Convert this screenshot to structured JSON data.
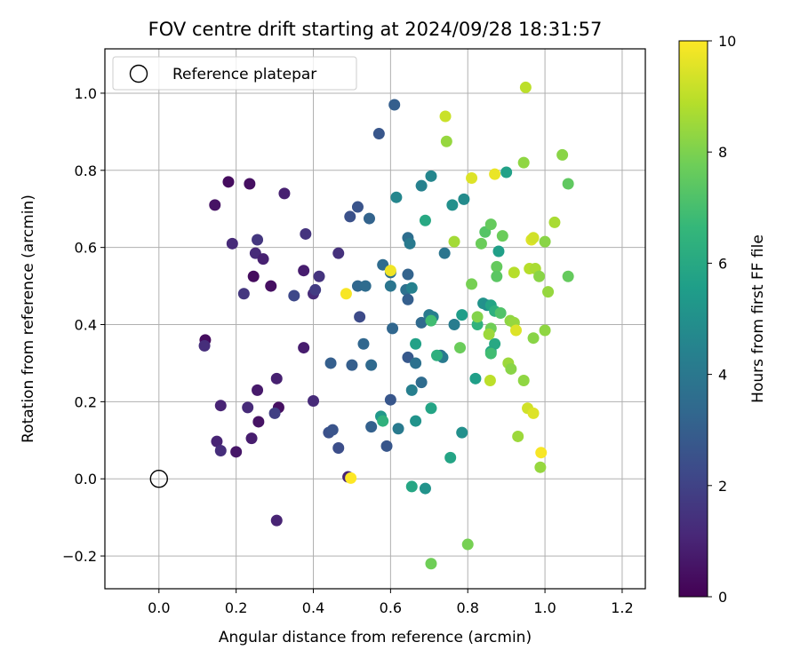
{
  "chart_data": {
    "type": "scatter",
    "title": "FOV centre drift starting at 2024/09/28 18:31:57",
    "xlabel": "Angular distance from reference (arcmin)",
    "ylabel": "Rotation from reference (arcmin)",
    "xlim": [
      -0.14,
      1.26
    ],
    "ylim": [
      -0.285,
      1.115
    ],
    "xticks": [
      0.0,
      0.2,
      0.4,
      0.6,
      0.8,
      1.0,
      1.2
    ],
    "xtick_labels": [
      "0.0",
      "0.2",
      "0.4",
      "0.6",
      "0.8",
      "1.0",
      "1.2"
    ],
    "yticks": [
      -0.2,
      0.0,
      0.2,
      0.4,
      0.6,
      0.8,
      1.0
    ],
    "ytick_labels": [
      "−0.2",
      "0.0",
      "0.2",
      "0.4",
      "0.6",
      "0.8",
      "1.0"
    ],
    "grid": true,
    "legend": {
      "position": "upper left",
      "entries": [
        "Reference platepar"
      ]
    },
    "reference_point": {
      "label": "Reference platepar",
      "x": 0.0,
      "y": 0.0
    },
    "colorbar": {
      "label": "Hours from first FF file",
      "range": [
        0,
        10
      ],
      "ticks": [
        0,
        2,
        4,
        6,
        8,
        10
      ],
      "tick_labels": [
        "0",
        "2",
        "4",
        "6",
        "8",
        "10"
      ],
      "colormap": "viridis",
      "colors": [
        "#440154",
        "#482878",
        "#3e4989",
        "#31688e",
        "#26828e",
        "#1f9e89",
        "#35b779",
        "#6ece58",
        "#b5de2b",
        "#fde725"
      ]
    },
    "series": [
      {
        "points": [
          [
            0.18,
            0.77,
            0.3
          ],
          [
            0.235,
            0.765,
            0.4
          ],
          [
            0.325,
            0.74,
            0.9
          ],
          [
            0.145,
            0.71,
            0.5
          ],
          [
            0.19,
            0.61,
            1.2
          ],
          [
            0.255,
            0.62,
            1.6
          ],
          [
            0.25,
            0.585,
            1.2
          ],
          [
            0.27,
            0.57,
            0.9
          ],
          [
            0.245,
            0.525,
            0.3
          ],
          [
            0.29,
            0.5,
            0.4
          ],
          [
            0.22,
            0.48,
            1.6
          ],
          [
            0.375,
            0.54,
            0.8
          ],
          [
            0.38,
            0.635,
            1.5
          ],
          [
            0.35,
            0.475,
            2.2
          ],
          [
            0.4,
            0.48,
            1.2
          ],
          [
            0.405,
            0.49,
            1.8
          ],
          [
            0.415,
            0.525,
            1.5
          ],
          [
            0.465,
            0.585,
            1.4
          ],
          [
            0.12,
            0.36,
            0.3
          ],
          [
            0.118,
            0.345,
            1.3
          ],
          [
            0.375,
            0.34,
            0.8
          ],
          [
            0.305,
            0.26,
            0.9
          ],
          [
            0.16,
            0.19,
            1.0
          ],
          [
            0.255,
            0.23,
            0.7
          ],
          [
            0.23,
            0.185,
            1.2
          ],
          [
            0.31,
            0.185,
            0.4
          ],
          [
            0.3,
            0.17,
            1.9
          ],
          [
            0.258,
            0.148,
            0.5
          ],
          [
            0.4,
            0.202,
            1.2
          ],
          [
            0.15,
            0.097,
            1.0
          ],
          [
            0.16,
            0.073,
            1.3
          ],
          [
            0.2,
            0.07,
            0.6
          ],
          [
            0.24,
            0.105,
            0.8
          ],
          [
            0.305,
            -0.108,
            1.0
          ],
          [
            0.44,
            0.12,
            2.5
          ],
          [
            0.45,
            0.127,
            2.6
          ],
          [
            0.465,
            0.08,
            2.4
          ],
          [
            0.49,
            0.005,
            1.0
          ],
          [
            0.495,
            0.68,
            2.5
          ],
          [
            0.515,
            0.705,
            2.6
          ],
          [
            0.545,
            0.675,
            3.2
          ],
          [
            0.57,
            0.895,
            2.7
          ],
          [
            0.61,
            0.97,
            3.0
          ],
          [
            0.515,
            0.5,
            3.3
          ],
          [
            0.535,
            0.5,
            3.5
          ],
          [
            0.52,
            0.42,
            2.3
          ],
          [
            0.53,
            0.35,
            3.3
          ],
          [
            0.445,
            0.3,
            3.0
          ],
          [
            0.5,
            0.295,
            3.0
          ],
          [
            0.55,
            0.295,
            3.4
          ],
          [
            0.58,
            0.555,
            3.5
          ],
          [
            0.6,
            0.535,
            3.5
          ],
          [
            0.6,
            0.5,
            3.9
          ],
          [
            0.605,
            0.39,
            3.3
          ],
          [
            0.6,
            0.205,
            2.7
          ],
          [
            0.55,
            0.135,
            3.1
          ],
          [
            0.59,
            0.085,
            2.7
          ],
          [
            0.62,
            0.13,
            4.1
          ],
          [
            0.645,
            0.625,
            3.6
          ],
          [
            0.65,
            0.61,
            4.1
          ],
          [
            0.645,
            0.53,
            3.2
          ],
          [
            0.64,
            0.49,
            3.7
          ],
          [
            0.645,
            0.465,
            3.0
          ],
          [
            0.655,
            0.495,
            4.4
          ],
          [
            0.645,
            0.315,
            2.8
          ],
          [
            0.68,
            0.405,
            3.4
          ],
          [
            0.665,
            0.3,
            3.7
          ],
          [
            0.68,
            0.25,
            3.5
          ],
          [
            0.655,
            0.23,
            4.3
          ],
          [
            0.615,
            0.73,
            4.6
          ],
          [
            0.68,
            0.76,
            4.4
          ],
          [
            0.705,
            0.785,
            4.6
          ],
          [
            0.74,
            0.585,
            3.9
          ],
          [
            0.7,
            0.425,
            4.1
          ],
          [
            0.71,
            0.42,
            4.3
          ],
          [
            0.73,
            0.32,
            3.7
          ],
          [
            0.735,
            0.315,
            4.1
          ],
          [
            0.76,
            0.71,
            5.0
          ],
          [
            0.79,
            0.725,
            4.8
          ],
          [
            0.765,
            0.4,
            4.2
          ],
          [
            0.785,
            0.425,
            5.5
          ],
          [
            0.785,
            0.12,
            5.0
          ],
          [
            0.755,
            0.055,
            5.8
          ],
          [
            0.665,
            0.35,
            5.7
          ],
          [
            0.665,
            0.15,
            5.1
          ],
          [
            0.655,
            -0.02,
            5.9
          ],
          [
            0.69,
            -0.025,
            5.1
          ],
          [
            0.575,
            0.162,
            5.3
          ],
          [
            0.58,
            0.15,
            6.4
          ],
          [
            0.69,
            0.67,
            6.0
          ],
          [
            0.705,
            0.41,
            6.9
          ],
          [
            0.72,
            0.32,
            6.3
          ],
          [
            0.705,
            0.183,
            5.8
          ],
          [
            0.82,
            0.26,
            5.6
          ],
          [
            0.84,
            0.455,
            5.1
          ],
          [
            0.85,
            0.45,
            5.0
          ],
          [
            0.86,
            0.45,
            5.8
          ],
          [
            0.87,
            0.435,
            6.3
          ],
          [
            0.88,
            0.59,
            5.6
          ],
          [
            0.9,
            0.795,
            5.7
          ],
          [
            0.825,
            0.4,
            6.4
          ],
          [
            0.87,
            0.35,
            6.0
          ],
          [
            0.86,
            0.33,
            5.9
          ],
          [
            0.86,
            0.325,
            6.9
          ],
          [
            0.78,
            0.34,
            7.7
          ],
          [
            0.845,
            0.64,
            7.3
          ],
          [
            0.86,
            0.66,
            7.6
          ],
          [
            0.835,
            0.61,
            7.7
          ],
          [
            0.875,
            0.55,
            7.6
          ],
          [
            0.875,
            0.525,
            7.4
          ],
          [
            0.81,
            0.505,
            7.9
          ],
          [
            0.825,
            0.42,
            8.1
          ],
          [
            0.86,
            0.39,
            7.8
          ],
          [
            0.855,
            0.375,
            8.5
          ],
          [
            0.885,
            0.43,
            7.2
          ],
          [
            0.89,
            0.63,
            7.7
          ],
          [
            0.8,
            -0.17,
            7.9
          ],
          [
            0.705,
            -0.22,
            7.8
          ],
          [
            0.765,
            0.615,
            8.6
          ],
          [
            0.745,
            0.875,
            8.4
          ],
          [
            0.742,
            0.94,
            9.2
          ],
          [
            0.81,
            0.78,
            9.5
          ],
          [
            0.87,
            0.79,
            9.7
          ],
          [
            0.95,
            1.015,
            9.0
          ],
          [
            0.945,
            0.82,
            8.3
          ],
          [
            1.045,
            0.84,
            8.2
          ],
          [
            1.06,
            0.765,
            7.5
          ],
          [
            1.025,
            0.665,
            8.7
          ],
          [
            0.965,
            0.62,
            9.5
          ],
          [
            0.97,
            0.625,
            9.3
          ],
          [
            1.0,
            0.615,
            8.2
          ],
          [
            0.96,
            0.545,
            8.9
          ],
          [
            0.975,
            0.545,
            8.7
          ],
          [
            0.985,
            0.525,
            8.2
          ],
          [
            0.92,
            0.535,
            8.9
          ],
          [
            1.06,
            0.525,
            7.6
          ],
          [
            1.008,
            0.485,
            8.4
          ],
          [
            0.91,
            0.41,
            8.3
          ],
          [
            0.92,
            0.405,
            8.4
          ],
          [
            0.925,
            0.385,
            9.5
          ],
          [
            0.97,
            0.365,
            8.2
          ],
          [
            1.0,
            0.385,
            8.3
          ],
          [
            0.905,
            0.3,
            8.5
          ],
          [
            0.912,
            0.285,
            8.2
          ],
          [
            0.945,
            0.255,
            8.3
          ],
          [
            0.858,
            0.255,
            9.0
          ],
          [
            0.955,
            0.183,
            9.3
          ],
          [
            0.97,
            0.17,
            9.5
          ],
          [
            0.93,
            0.11,
            8.5
          ],
          [
            0.99,
            0.068,
            9.9
          ],
          [
            0.988,
            0.03,
            8.4
          ],
          [
            0.6,
            0.54,
            9.8
          ],
          [
            0.485,
            0.48,
            9.9
          ],
          [
            0.497,
            0.002,
            10.0
          ]
        ]
      }
    ]
  }
}
